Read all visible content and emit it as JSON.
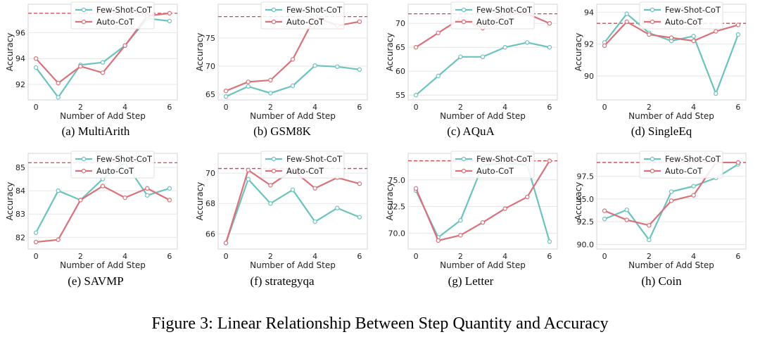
{
  "colors": {
    "few_shot": "#6cc3bd",
    "auto": "#d9717b",
    "ref_line": "#c9474f",
    "grid": "#e6e6e6",
    "axis": "#cccccc"
  },
  "figure_caption": "Figure 3: Linear Relationship Between Step Quantity and Accuracy",
  "chart_data": [
    {
      "type": "line",
      "caption": "(a) MultiArith",
      "xlabel": "Number of Add Step",
      "ylabel": "Accuracy",
      "x": [
        0,
        1,
        2,
        3,
        4,
        5,
        6
      ],
      "xticks": [
        0,
        2,
        4,
        6
      ],
      "ylim": [
        90.8,
        98.2
      ],
      "yticks": [
        92,
        94,
        96
      ],
      "reference_line": 97.5,
      "series": [
        {
          "name": "Few-Shot-CoT",
          "values": [
            93.3,
            91.0,
            93.5,
            93.7,
            95.0,
            97.1,
            96.9
          ]
        },
        {
          "name": "Auto-CoT",
          "values": [
            94.0,
            92.1,
            93.4,
            92.9,
            95.0,
            97.3,
            97.5
          ]
        }
      ],
      "legend": "top-center",
      "grid": true
    },
    {
      "type": "line",
      "caption": "(b) GSM8K",
      "xlabel": "Number of Add Step",
      "ylabel": "Accuracy",
      "x": [
        0,
        1,
        2,
        3,
        4,
        5,
        6
      ],
      "xticks": [
        0,
        2,
        4,
        6
      ],
      "ylim": [
        64.0,
        81.0
      ],
      "yticks": [
        65,
        70,
        75
      ],
      "reference_line": 78.8,
      "series": [
        {
          "name": "Few-Shot-CoT",
          "values": [
            64.6,
            66.4,
            65.2,
            66.5,
            70.1,
            69.9,
            69.4
          ]
        },
        {
          "name": "Auto-CoT",
          "values": [
            65.6,
            67.2,
            67.5,
            71.2,
            78.8,
            77.2,
            77.9
          ]
        }
      ],
      "legend": "top-center",
      "grid": true
    },
    {
      "type": "line",
      "caption": "(c) AQuA",
      "xlabel": "Number of Add Step",
      "ylabel": "Accuracy",
      "x": [
        0,
        1,
        2,
        3,
        4,
        5,
        6
      ],
      "xticks": [
        0,
        2,
        4,
        6
      ],
      "ylim": [
        54.0,
        74.0
      ],
      "yticks": [
        55,
        60,
        65,
        70
      ],
      "reference_line": 72.0,
      "series": [
        {
          "name": "Few-Shot-CoT",
          "values": [
            55.0,
            59.0,
            63.0,
            63.0,
            65.0,
            66.0,
            65.0
          ]
        },
        {
          "name": "Auto-CoT",
          "values": [
            65.0,
            68.0,
            71.0,
            69.0,
            72.0,
            72.0,
            70.0
          ]
        }
      ],
      "legend": "top-center",
      "grid": true
    },
    {
      "type": "line",
      "caption": "(d) SingleEq",
      "xlabel": "Number of Add Step",
      "ylabel": "Accuracy",
      "x": [
        0,
        1,
        2,
        3,
        4,
        5,
        6
      ],
      "xticks": [
        0,
        2,
        4,
        6
      ],
      "ylim": [
        88.5,
        94.5
      ],
      "yticks": [
        90,
        92,
        94
      ],
      "reference_line": 93.3,
      "series": [
        {
          "name": "Few-Shot-CoT",
          "values": [
            92.1,
            93.9,
            92.7,
            92.2,
            92.5,
            88.9,
            92.6
          ]
        },
        {
          "name": "Auto-CoT",
          "values": [
            91.9,
            93.4,
            92.6,
            92.4,
            92.2,
            92.8,
            93.2
          ]
        }
      ],
      "legend": "top-center",
      "grid": true
    },
    {
      "type": "line",
      "caption": "(e) SAVMP",
      "xlabel": "Number of Add Step",
      "ylabel": "Accuracy",
      "x": [
        0,
        1,
        2,
        3,
        4,
        5,
        6
      ],
      "xticks": [
        0,
        2,
        4,
        6
      ],
      "ylim": [
        81.5,
        85.6
      ],
      "yticks": [
        82,
        83,
        84,
        85
      ],
      "reference_line": 85.2,
      "series": [
        {
          "name": "Few-Shot-CoT",
          "values": [
            82.2,
            84.0,
            83.6,
            84.5,
            85.2,
            83.8,
            84.1
          ]
        },
        {
          "name": "Auto-CoT",
          "values": [
            81.8,
            81.9,
            83.6,
            84.2,
            83.7,
            84.1,
            83.6
          ]
        }
      ],
      "legend": "top-center",
      "grid": true
    },
    {
      "type": "line",
      "caption": "(f) strategyqa",
      "xlabel": "Number of Add Step",
      "ylabel": "Accuracy",
      "x": [
        0,
        1,
        2,
        3,
        4,
        5,
        6
      ],
      "xticks": [
        0,
        2,
        4,
        6
      ],
      "ylim": [
        65.0,
        71.3
      ],
      "yticks": [
        66,
        68,
        70
      ],
      "reference_line": 70.3,
      "series": [
        {
          "name": "Few-Shot-CoT",
          "values": [
            65.4,
            69.6,
            68.0,
            68.9,
            66.8,
            67.7,
            67.1
          ]
        },
        {
          "name": "Auto-CoT",
          "values": [
            65.4,
            70.2,
            69.2,
            70.2,
            69.0,
            69.7,
            69.3
          ]
        }
      ],
      "legend": "top-center",
      "grid": true
    },
    {
      "type": "line",
      "caption": "(g) Letter",
      "xlabel": "Number of Add Step",
      "ylabel": "Accuracy",
      "x": [
        0,
        1,
        2,
        3,
        4,
        5,
        6
      ],
      "xticks": [
        0,
        2,
        4,
        6
      ],
      "ylim": [
        68.5,
        77.5
      ],
      "yticks": [
        70.0,
        72.5,
        75.0
      ],
      "tick_decimals": 1,
      "reference_line": 76.8,
      "series": [
        {
          "name": "Few-Shot-CoT",
          "values": [
            74.0,
            69.6,
            71.2,
            76.4,
            76.6,
            76.4,
            69.2
          ]
        },
        {
          "name": "Auto-CoT",
          "values": [
            74.2,
            69.3,
            69.8,
            71.0,
            72.3,
            73.4,
            76.8
          ]
        }
      ],
      "legend": "top-center",
      "grid": true
    },
    {
      "type": "line",
      "caption": "(h) Coin",
      "xlabel": "Number of Add Step",
      "ylabel": "Accuracy",
      "x": [
        0,
        1,
        2,
        3,
        4,
        5,
        6
      ],
      "xticks": [
        0,
        2,
        4,
        6
      ],
      "ylim": [
        89.5,
        100.0
      ],
      "yticks": [
        90.0,
        92.5,
        95.0,
        97.5
      ],
      "tick_decimals": 1,
      "reference_line": 99.0,
      "series": [
        {
          "name": "Few-Shot-CoT",
          "values": [
            92.8,
            93.8,
            90.5,
            95.8,
            96.4,
            97.3,
            98.8
          ]
        },
        {
          "name": "Auto-CoT",
          "values": [
            93.7,
            92.7,
            92.1,
            94.8,
            95.4,
            99.0,
            99.0
          ]
        }
      ],
      "legend": "top-center",
      "grid": true
    }
  ]
}
